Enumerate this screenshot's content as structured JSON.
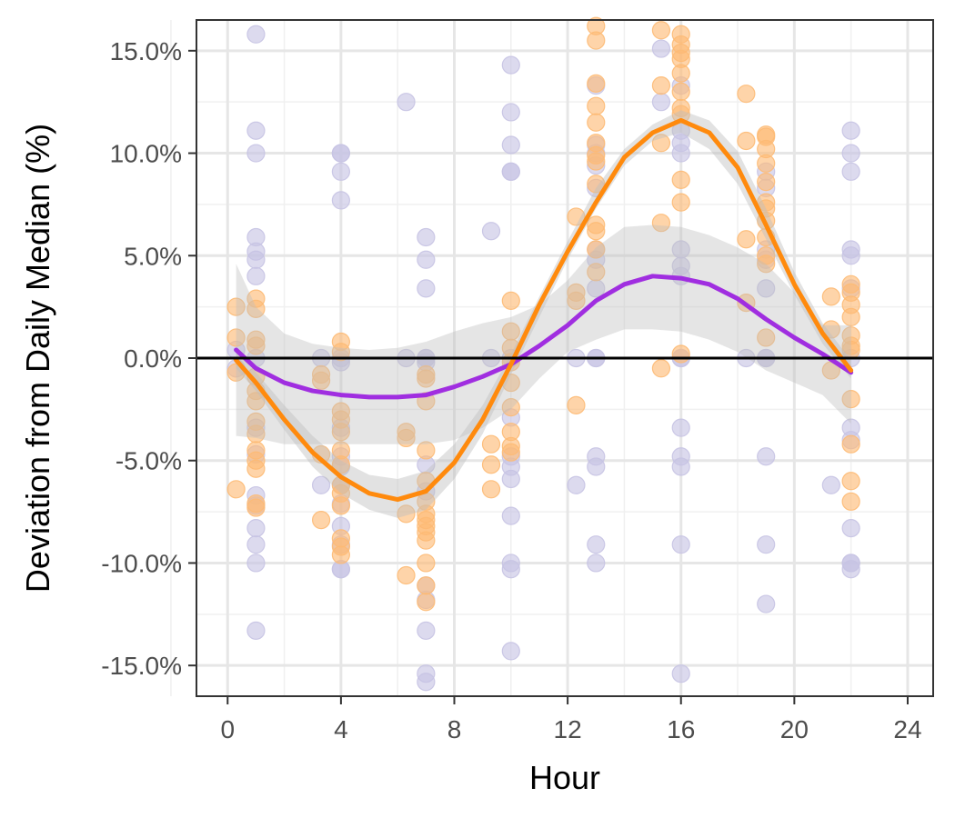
{
  "chart_data": {
    "type": "scatter",
    "title": "",
    "xlabel": "Hour",
    "ylabel": "Deviation from Daily Median (%)",
    "xlim": [
      -1.1,
      24.9
    ],
    "ylim": [
      -16.5,
      16.5
    ],
    "x_ticks": [
      0,
      4,
      8,
      12,
      16,
      20,
      24
    ],
    "x_tick_labels": [
      "0",
      "4",
      "8",
      "12",
      "16",
      "20",
      "24"
    ],
    "y_ticks": [
      -15,
      -10,
      -5,
      0,
      5,
      10,
      15
    ],
    "y_tick_labels": [
      "-15.0%",
      "-10.0%",
      "-5.0%",
      "0.0%",
      "5.0%",
      "10.0%",
      "15.0%"
    ],
    "grid": true,
    "legend": "none",
    "reference_line": {
      "y": 0,
      "color": "#000000"
    },
    "series": [
      {
        "kind": "points",
        "color": "#c7c3e3",
        "points": [
          [
            0.3,
            0.4
          ],
          [
            0.3,
            -0.5
          ],
          [
            1,
            15.8
          ],
          [
            1,
            11.1
          ],
          [
            1,
            10.0
          ],
          [
            1,
            5.9
          ],
          [
            1,
            5.2
          ],
          [
            1,
            4.8
          ],
          [
            1,
            4.0
          ],
          [
            1,
            0.0
          ],
          [
            1,
            -3.4
          ],
          [
            1,
            -4.7
          ],
          [
            1,
            -6.7
          ],
          [
            1,
            -7.2
          ],
          [
            1,
            -8.3
          ],
          [
            1,
            -9.1
          ],
          [
            1,
            -10.0
          ],
          [
            1,
            -13.3
          ],
          [
            3.3,
            0.0
          ],
          [
            3.3,
            -6.2
          ],
          [
            4,
            10.0
          ],
          [
            4,
            10.0
          ],
          [
            4,
            9.1
          ],
          [
            4,
            7.7
          ],
          [
            4,
            0.0
          ],
          [
            4,
            -0.2
          ],
          [
            4,
            -3.4
          ],
          [
            4,
            -4.8
          ],
          [
            4,
            -5.3
          ],
          [
            4,
            -6.2
          ],
          [
            4,
            -7.1
          ],
          [
            4,
            -8.2
          ],
          [
            4,
            -9.1
          ],
          [
            4,
            -10.3
          ],
          [
            4,
            -10.3
          ],
          [
            6.3,
            12.5
          ],
          [
            6.3,
            0.0
          ],
          [
            7,
            5.9
          ],
          [
            7,
            4.8
          ],
          [
            7,
            3.4
          ],
          [
            7,
            0.0
          ],
          [
            7,
            0.0
          ],
          [
            7,
            -0.2
          ],
          [
            7,
            -5.2
          ],
          [
            7,
            -6.5
          ],
          [
            7,
            -11.1
          ],
          [
            7,
            -11.8
          ],
          [
            7,
            -13.3
          ],
          [
            7,
            -15.4
          ],
          [
            7,
            -15.8
          ],
          [
            9.3,
            6.2
          ],
          [
            9.3,
            0.0
          ],
          [
            10,
            14.3
          ],
          [
            10,
            12.0
          ],
          [
            10,
            10.4
          ],
          [
            10,
            9.1
          ],
          [
            10,
            9.1
          ],
          [
            10,
            0.0
          ],
          [
            10,
            -2.9
          ],
          [
            10,
            -4.8
          ],
          [
            10,
            -5.3
          ],
          [
            10,
            -5.9
          ],
          [
            10,
            -7.7
          ],
          [
            10,
            -10.0
          ],
          [
            10,
            -10.3
          ],
          [
            10,
            -14.3
          ],
          [
            12.3,
            0.0
          ],
          [
            12.3,
            -6.2
          ],
          [
            13,
            13.3
          ],
          [
            13,
            10.4
          ],
          [
            13,
            10.0
          ],
          [
            13,
            9.4
          ],
          [
            13,
            8.3
          ],
          [
            13,
            5.3
          ],
          [
            13,
            4.8
          ],
          [
            13,
            3.4
          ],
          [
            13,
            0.0
          ],
          [
            13,
            0.0
          ],
          [
            13,
            -4.8
          ],
          [
            13,
            -5.3
          ],
          [
            13,
            -9.1
          ],
          [
            13,
            -10.0
          ],
          [
            15.3,
            15.1
          ],
          [
            15.3,
            12.5
          ],
          [
            16,
            13.3
          ],
          [
            16,
            11.1
          ],
          [
            16,
            10.5
          ],
          [
            16,
            10.0
          ],
          [
            16,
            5.3
          ],
          [
            16,
            4.5
          ],
          [
            16,
            4.0
          ],
          [
            16,
            0.0
          ],
          [
            16,
            0.0
          ],
          [
            16,
            -3.4
          ],
          [
            16,
            -4.8
          ],
          [
            16,
            -5.3
          ],
          [
            16,
            -9.1
          ],
          [
            16,
            -15.4
          ],
          [
            18.3,
            0.0
          ],
          [
            19,
            9.1
          ],
          [
            19,
            8.3
          ],
          [
            19,
            5.3
          ],
          [
            19,
            4.8
          ],
          [
            19,
            3.4
          ],
          [
            19,
            0.0
          ],
          [
            19,
            0.0
          ],
          [
            19,
            -4.8
          ],
          [
            19,
            -9.1
          ],
          [
            19,
            -12.0
          ],
          [
            21.3,
            -6.2
          ],
          [
            22,
            11.1
          ],
          [
            22,
            10.0
          ],
          [
            22,
            9.1
          ],
          [
            22,
            5.3
          ],
          [
            22,
            5.0
          ],
          [
            22,
            3.4
          ],
          [
            22,
            0.0
          ],
          [
            22,
            -3.4
          ],
          [
            22,
            -4.0
          ],
          [
            22,
            -8.3
          ],
          [
            22,
            -10.0
          ],
          [
            22,
            -10.0
          ],
          [
            22,
            -10.3
          ]
        ]
      },
      {
        "kind": "points",
        "color": "#fdba74",
        "points": [
          [
            0.3,
            2.5
          ],
          [
            0.3,
            1.0
          ],
          [
            0.3,
            -0.7
          ],
          [
            0.3,
            -6.4
          ],
          [
            1,
            2.9
          ],
          [
            1,
            2.4
          ],
          [
            1,
            0.9
          ],
          [
            1,
            0.6
          ],
          [
            1,
            -0.9
          ],
          [
            1,
            -1.6
          ],
          [
            1,
            -2.1
          ],
          [
            1,
            -3.1
          ],
          [
            1,
            -3.7
          ],
          [
            1,
            -4.5
          ],
          [
            1,
            -5.0
          ],
          [
            1,
            -5.4
          ],
          [
            1,
            -7.1
          ],
          [
            1,
            -7.3
          ],
          [
            3.3,
            -0.8
          ],
          [
            3.3,
            -1.1
          ],
          [
            3.3,
            -4.7
          ],
          [
            3.3,
            -7.9
          ],
          [
            4,
            0.8
          ],
          [
            4,
            0.3
          ],
          [
            4,
            -2.6
          ],
          [
            4,
            -3.0
          ],
          [
            4,
            -3.6
          ],
          [
            4,
            -4.5
          ],
          [
            4,
            -5.2
          ],
          [
            4,
            -6.2
          ],
          [
            4,
            -6.6
          ],
          [
            4,
            -7.2
          ],
          [
            4,
            -8.8
          ],
          [
            4,
            -9.2
          ],
          [
            4,
            -9.6
          ],
          [
            6.3,
            -3.6
          ],
          [
            6.3,
            -3.9
          ],
          [
            6.3,
            -7.6
          ],
          [
            6.3,
            -10.6
          ],
          [
            7,
            -0.8
          ],
          [
            7,
            -1.0
          ],
          [
            7,
            -2.1
          ],
          [
            7,
            -4.5
          ],
          [
            7,
            -6.0
          ],
          [
            7,
            -7.0
          ],
          [
            7,
            -7.6
          ],
          [
            7,
            -7.9
          ],
          [
            7,
            -8.2
          ],
          [
            7,
            -8.5
          ],
          [
            7,
            -8.9
          ],
          [
            7,
            -10.0
          ],
          [
            7,
            -11.1
          ],
          [
            7,
            -11.9
          ],
          [
            9.3,
            -4.2
          ],
          [
            9.3,
            -5.2
          ],
          [
            9.3,
            -6.4
          ],
          [
            10,
            2.8
          ],
          [
            10,
            1.3
          ],
          [
            10,
            0.5
          ],
          [
            10,
            -0.2
          ],
          [
            10,
            -1.2
          ],
          [
            10,
            -2.4
          ],
          [
            10,
            -3.6
          ],
          [
            10,
            -4.3
          ],
          [
            10,
            -4.6
          ],
          [
            12.3,
            6.9
          ],
          [
            12.3,
            3.2
          ],
          [
            12.3,
            2.8
          ],
          [
            12.3,
            -2.3
          ],
          [
            13,
            16.2
          ],
          [
            13,
            15.5
          ],
          [
            13,
            13.4
          ],
          [
            13,
            12.3
          ],
          [
            13,
            11.5
          ],
          [
            13,
            10.5
          ],
          [
            13,
            9.9
          ],
          [
            13,
            9.6
          ],
          [
            13,
            8.5
          ],
          [
            13,
            6.5
          ],
          [
            13,
            6.2
          ],
          [
            13,
            5.3
          ],
          [
            13,
            4.2
          ],
          [
            15.3,
            16.0
          ],
          [
            15.3,
            13.3
          ],
          [
            15.3,
            10.5
          ],
          [
            15.3,
            6.6
          ],
          [
            15.3,
            -0.5
          ],
          [
            16,
            15.8
          ],
          [
            16,
            15.3
          ],
          [
            16,
            14.9
          ],
          [
            16,
            14.6
          ],
          [
            16,
            13.9
          ],
          [
            16,
            13.0
          ],
          [
            16,
            12.2
          ],
          [
            16,
            11.9
          ],
          [
            16,
            8.7
          ],
          [
            16,
            7.6
          ],
          [
            16,
            0.2
          ],
          [
            18.3,
            12.9
          ],
          [
            18.3,
            10.6
          ],
          [
            18.3,
            5.8
          ],
          [
            18.3,
            2.7
          ],
          [
            19,
            10.9
          ],
          [
            19,
            10.8
          ],
          [
            19,
            10.2
          ],
          [
            19,
            9.5
          ],
          [
            19,
            8.6
          ],
          [
            19,
            7.6
          ],
          [
            19,
            7.3
          ],
          [
            19,
            6.7
          ],
          [
            19,
            5.9
          ],
          [
            19,
            5.0
          ],
          [
            19,
            4.6
          ],
          [
            19,
            1.0
          ],
          [
            21.3,
            3.0
          ],
          [
            21.3,
            1.4
          ],
          [
            21.3,
            -0.6
          ],
          [
            22,
            3.6
          ],
          [
            22,
            3.2
          ],
          [
            22,
            2.6
          ],
          [
            22,
            2.0
          ],
          [
            22,
            1.1
          ],
          [
            22,
            0.6
          ],
          [
            22,
            0.4
          ],
          [
            22,
            -2.0
          ],
          [
            22,
            -4.2
          ],
          [
            22,
            -6.0
          ],
          [
            22,
            -7.0
          ]
        ]
      },
      {
        "kind": "band",
        "color": "#bfbfbf",
        "opacity": 0.4,
        "x": [
          0.3,
          1,
          2,
          3,
          4,
          5,
          6,
          7,
          8,
          9,
          10,
          11,
          12,
          13,
          14,
          15,
          16,
          17,
          18,
          19,
          20,
          21,
          22
        ],
        "upper": [
          4.6,
          2.5,
          1.2,
          0.7,
          0.5,
          0.4,
          0.5,
          0.8,
          1.3,
          1.7,
          2.0,
          2.6,
          3.8,
          5.4,
          6.4,
          6.5,
          6.4,
          6.0,
          5.4,
          4.6,
          3.2,
          1.6,
          1.6
        ],
        "lower": [
          -3.8,
          -3.9,
          -4.2,
          -4.2,
          -4.2,
          -4.2,
          -4.2,
          -4.2,
          -4.0,
          -3.4,
          -2.5,
          -1.0,
          0.3,
          0.9,
          1.4,
          1.4,
          1.3,
          0.9,
          0.3,
          -0.6,
          -1.2,
          -1.8,
          -3.2
        ]
      },
      {
        "kind": "band",
        "color": "#bfbfbf",
        "opacity": 0.45,
        "x": [
          0.3,
          1,
          2,
          3,
          4,
          5,
          6,
          7,
          8,
          9,
          10,
          11,
          12,
          13,
          14,
          15,
          16,
          17,
          18,
          19,
          20,
          21,
          22
        ],
        "upper": [
          0.3,
          -0.7,
          -2.3,
          -3.8,
          -5.0,
          -5.7,
          -5.9,
          -5.5,
          -4.2,
          -2.3,
          0.2,
          3.0,
          5.7,
          8.3,
          10.2,
          11.4,
          12.1,
          11.6,
          10.1,
          7.3,
          4.2,
          1.7,
          -0.1
        ],
        "lower": [
          -0.5,
          -1.6,
          -3.5,
          -5.3,
          -6.6,
          -7.4,
          -7.8,
          -7.4,
          -5.9,
          -3.7,
          -0.8,
          2.0,
          4.8,
          7.3,
          9.4,
          10.6,
          11.0,
          10.2,
          8.5,
          5.8,
          3.1,
          0.7,
          -1.0
        ]
      },
      {
        "kind": "line",
        "color": "#a02ee0",
        "x": [
          0.3,
          1,
          2,
          3,
          4,
          5,
          6,
          7,
          8,
          9,
          10,
          11,
          12,
          13,
          14,
          15,
          16,
          17,
          18,
          19,
          20,
          21,
          22
        ],
        "y": [
          0.4,
          -0.5,
          -1.2,
          -1.6,
          -1.8,
          -1.9,
          -1.9,
          -1.8,
          -1.4,
          -0.9,
          -0.3,
          0.6,
          1.6,
          2.8,
          3.6,
          4.0,
          3.9,
          3.6,
          2.9,
          1.9,
          1.0,
          0.2,
          -0.7
        ]
      },
      {
        "kind": "line",
        "color": "#ff8a0d",
        "x": [
          0.3,
          1,
          2,
          3,
          4,
          5,
          6,
          7,
          8,
          9,
          10,
          11,
          12,
          13,
          14,
          15,
          16,
          17,
          18,
          19,
          20,
          21,
          22
        ],
        "y": [
          -0.1,
          -1.2,
          -3.0,
          -4.6,
          -5.8,
          -6.6,
          -6.9,
          -6.5,
          -5.1,
          -3.0,
          -0.3,
          2.6,
          5.2,
          7.6,
          9.8,
          11.0,
          11.6,
          11.0,
          9.3,
          6.5,
          3.6,
          1.2,
          -0.6
        ]
      }
    ]
  }
}
